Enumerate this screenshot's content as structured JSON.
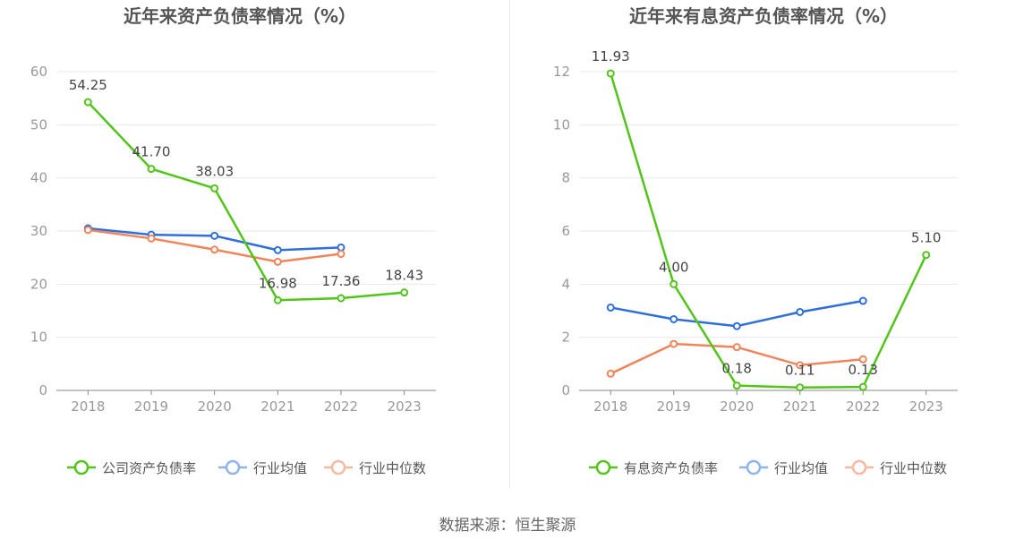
{
  "colors": {
    "green": "#52c41a",
    "blue": "#2f6fdb",
    "orange": "#f0845a",
    "grid": "#e6e8ef",
    "axis": "#888888",
    "tick_text": "#999999",
    "title_text": "#555555",
    "label_text": "#444444"
  },
  "source_text": "数据来源：恒生聚源",
  "chart_data": [
    {
      "type": "line",
      "title": "近年来资产负债率情况（%）",
      "categories": [
        "2018",
        "2019",
        "2020",
        "2021",
        "2022",
        "2023"
      ],
      "ylim": [
        0,
        60
      ],
      "yticks": [
        "0",
        "10",
        "20",
        "30",
        "40",
        "50",
        "60"
      ],
      "grid": true,
      "legend_position": "bottom",
      "series": [
        {
          "name": "公司资产负债率",
          "color_key": "green",
          "values": [
            54.25,
            41.7,
            38.03,
            16.98,
            17.36,
            18.43
          ],
          "labels": [
            "54.25",
            "41.70",
            "38.03",
            "16.98",
            "17.36",
            "18.43"
          ]
        },
        {
          "name": "行业均值",
          "color_key": "blue",
          "values": [
            30.5,
            29.3,
            29.1,
            26.4,
            26.9,
            null
          ]
        },
        {
          "name": "行业中位数",
          "color_key": "orange",
          "values": [
            30.2,
            28.6,
            26.5,
            24.2,
            25.7,
            null
          ]
        }
      ]
    },
    {
      "type": "line",
      "title": "近年来有息资产负债率情况（%）",
      "categories": [
        "2018",
        "2019",
        "2020",
        "2021",
        "2022",
        "2023"
      ],
      "ylim": [
        0,
        12
      ],
      "yticks": [
        "0",
        "2",
        "4",
        "6",
        "8",
        "10",
        "12"
      ],
      "grid": true,
      "legend_position": "bottom",
      "series": [
        {
          "name": "有息资产负债率",
          "color_key": "green",
          "values": [
            11.93,
            4.0,
            0.18,
            0.11,
            0.13,
            5.1
          ],
          "labels": [
            "11.93",
            "4.00",
            "0.18",
            "0.11",
            "0.13",
            "5.10"
          ]
        },
        {
          "name": "行业均值",
          "color_key": "blue",
          "values": [
            3.12,
            2.68,
            2.42,
            2.95,
            3.37,
            null
          ]
        },
        {
          "name": "行业中位数",
          "color_key": "orange",
          "values": [
            0.63,
            1.75,
            1.63,
            0.95,
            1.17,
            null
          ]
        }
      ]
    }
  ]
}
